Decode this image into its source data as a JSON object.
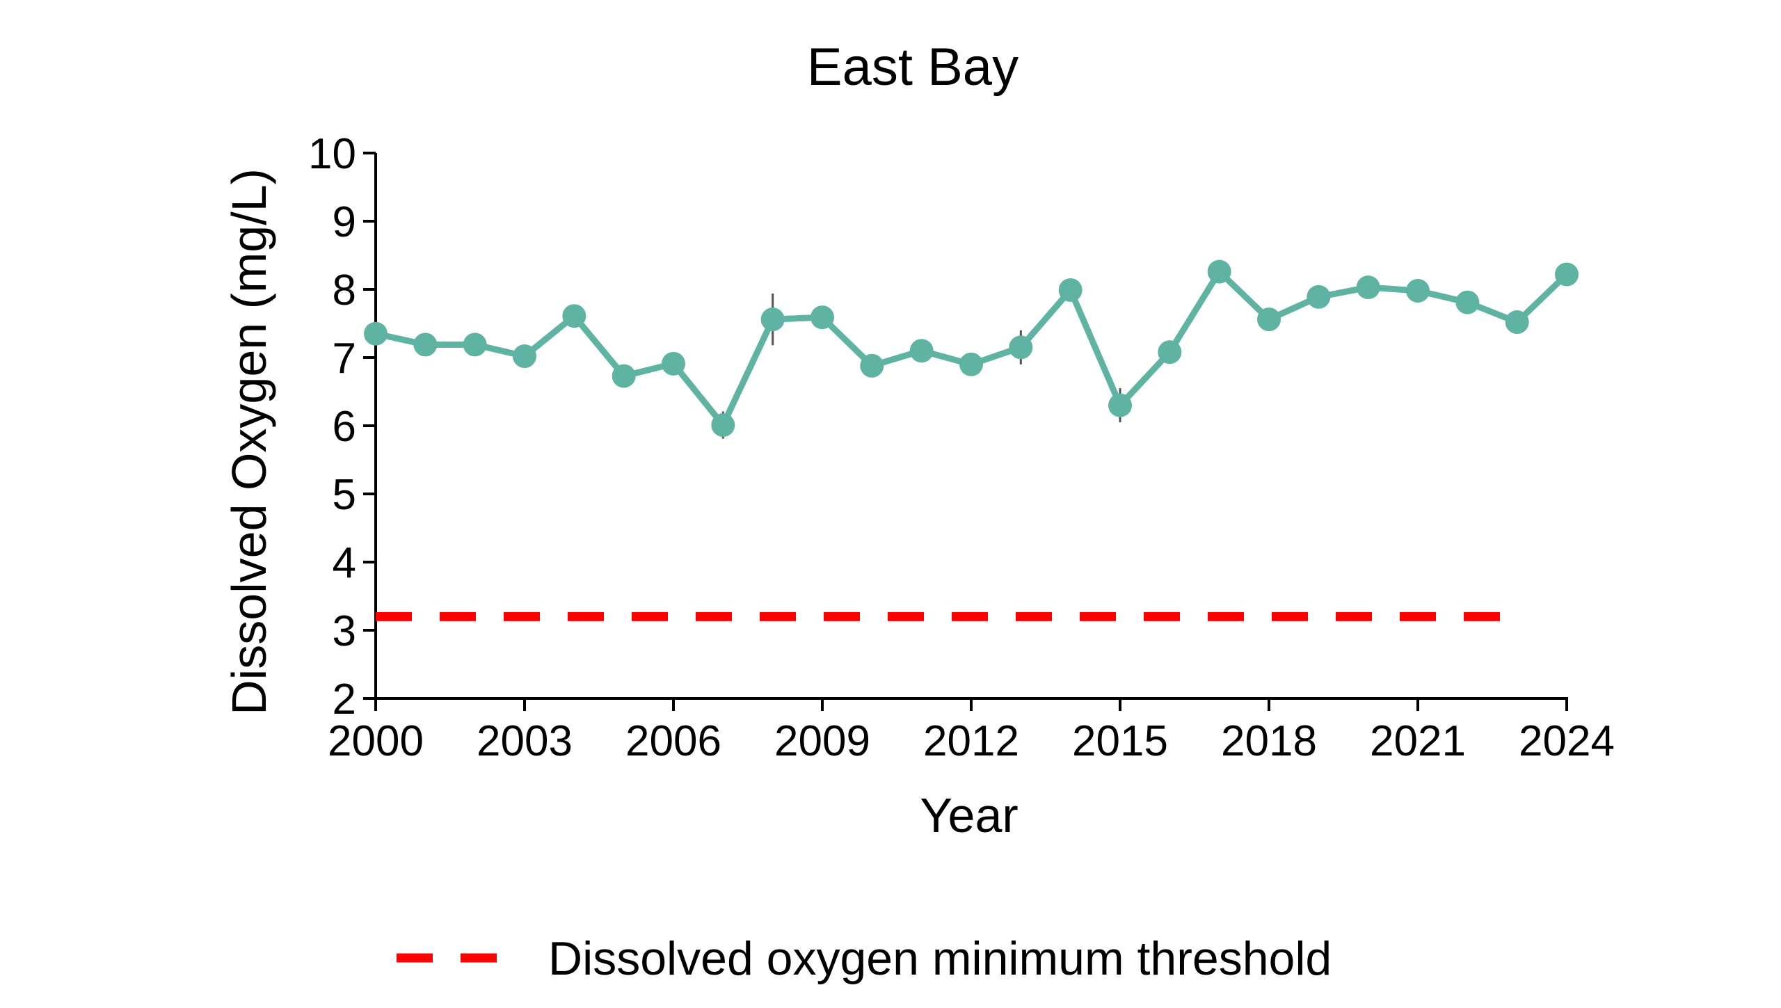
{
  "chart_data": {
    "type": "line",
    "title": "East Bay",
    "xlabel": "Year",
    "ylabel": "Dissolved Oxygen (mg/L)",
    "xlim": [
      2000,
      2024
    ],
    "ylim": [
      2,
      10
    ],
    "x_ticks": [
      2000,
      2003,
      2006,
      2009,
      2012,
      2015,
      2018,
      2021,
      2024
    ],
    "y_ticks": [
      2,
      3,
      4,
      5,
      6,
      7,
      8,
      9,
      10
    ],
    "grid": false,
    "legend_position": "bottom",
    "series": [
      {
        "color": "#5fb3a3",
        "marker": "circle",
        "x": [
          2000,
          2001,
          2002,
          2003,
          2004,
          2005,
          2006,
          2007,
          2008,
          2009,
          2010,
          2011,
          2012,
          2013,
          2014,
          2015,
          2016,
          2017,
          2018,
          2019,
          2020,
          2021,
          2022,
          2023,
          2024
        ],
        "y": [
          7.35,
          7.19,
          7.19,
          7.02,
          7.61,
          6.73,
          6.91,
          6.01,
          7.56,
          7.59,
          6.88,
          7.1,
          6.9,
          7.15,
          7.99,
          6.3,
          7.08,
          8.26,
          7.56,
          7.89,
          8.03,
          7.98,
          7.81,
          7.52,
          8.22
        ],
        "error_bars": [
          0,
          0,
          0,
          0,
          0,
          0.15,
          0,
          0.2,
          0.38,
          0.15,
          0,
          0,
          0,
          0.25,
          0,
          0.25,
          0,
          0,
          0,
          0,
          0,
          0,
          0,
          0,
          0
        ]
      },
      {
        "name": "Dissolved oxygen minimum threshold",
        "color": "#ff0000",
        "style": "dashed",
        "x": [
          2000,
          2023
        ],
        "y": [
          3.2,
          3.2
        ]
      }
    ]
  }
}
